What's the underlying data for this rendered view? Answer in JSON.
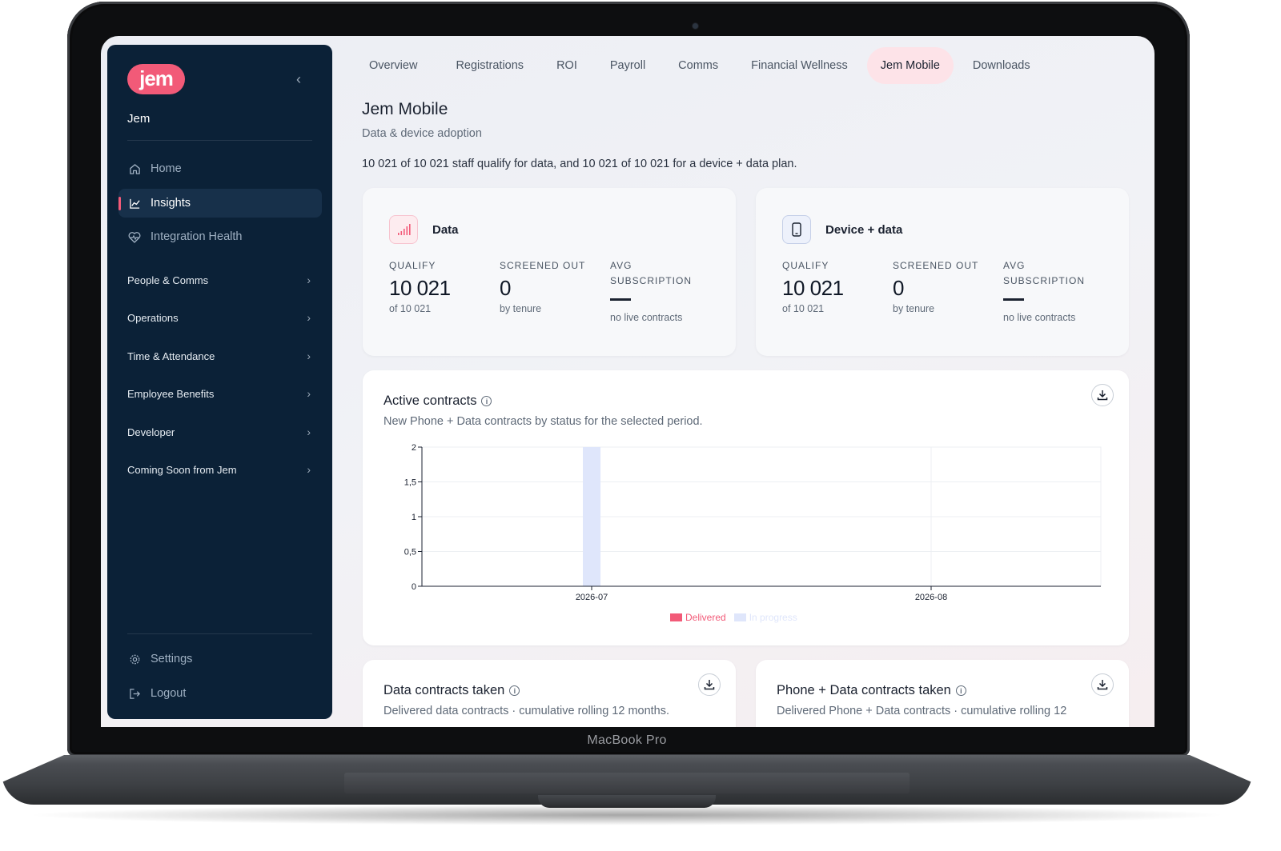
{
  "device": {
    "brand_label": "MacBook Pro"
  },
  "sidebar": {
    "logo_text": "jem",
    "collapse_icon": "chevron-left-icon",
    "org_name": "Jem",
    "primary_nav": [
      {
        "label": "Home",
        "icon": "home-icon",
        "active": false
      },
      {
        "label": "Insights",
        "icon": "line-chart-icon",
        "active": true
      },
      {
        "label": "Integration Health",
        "icon": "heart-pulse-icon",
        "active": false
      }
    ],
    "groups": [
      {
        "label": "People & Comms"
      },
      {
        "label": "Operations"
      },
      {
        "label": "Time & Attendance"
      },
      {
        "label": "Employee Benefits"
      },
      {
        "label": "Developer"
      },
      {
        "label": "Coming Soon from Jem"
      }
    ],
    "footer_nav": [
      {
        "label": "Settings",
        "icon": "gear-icon"
      },
      {
        "label": "Logout",
        "icon": "logout-icon"
      }
    ]
  },
  "tabs": [
    {
      "label": "Overview",
      "active": false
    },
    {
      "label": "Registrations",
      "active": false
    },
    {
      "label": "ROI",
      "active": false
    },
    {
      "label": "Payroll",
      "active": false
    },
    {
      "label": "Comms",
      "active": false
    },
    {
      "label": "Financial Wellness",
      "active": false
    },
    {
      "label": "Jem Mobile",
      "active": true
    },
    {
      "label": "Downloads",
      "active": false
    }
  ],
  "header": {
    "title": "Jem Mobile",
    "subtitle": "Data & device adoption",
    "qualify_line": "10 021 of 10 021 staff qualify for data, and 10 021 of 10 021 for a device + data plan."
  },
  "kpi_cards": [
    {
      "title": "Data",
      "icon": "signal-bars-icon",
      "qualify": {
        "label": "QUALIFY",
        "value": "10 021",
        "sub": "of 10 021"
      },
      "screened": {
        "label": "SCREENED OUT",
        "value": "0",
        "sub": "by tenure"
      },
      "avg": {
        "label": "AVG SUBSCRIPTION",
        "value": "—",
        "sub": "no live contracts"
      }
    },
    {
      "title": "Device + data",
      "icon": "phone-icon",
      "qualify": {
        "label": "QUALIFY",
        "value": "10 021",
        "sub": "of 10 021"
      },
      "screened": {
        "label": "SCREENED OUT",
        "value": "0",
        "sub": "by tenure"
      },
      "avg": {
        "label": "AVG SUBSCRIPTION",
        "value": "—",
        "sub": "no live contracts"
      }
    }
  ],
  "active_contracts": {
    "title": "Active contracts",
    "subtitle": "New Phone + Data contracts by status for the selected period.",
    "download_icon": "download-icon",
    "info_icon": "info-icon"
  },
  "chart_data": {
    "type": "bar",
    "categories": [
      "2026-07",
      "2026-08"
    ],
    "series": [
      {
        "name": "Delivered",
        "values": [
          0,
          0
        ],
        "color": "#f25a78"
      },
      {
        "name": "In progress",
        "values": [
          2,
          0
        ],
        "color": "#dfe6fb"
      }
    ],
    "y_ticks": [
      "0",
      "0,5",
      "1",
      "1,5",
      "2"
    ],
    "ylim": [
      0,
      2
    ],
    "stacked": true,
    "grid": true,
    "legend_position": "bottom-center"
  },
  "lower_cards": [
    {
      "title": "Data contracts taken",
      "subtitle": "Delivered data contracts · cumulative rolling 12 months."
    },
    {
      "title": "Phone + Data contracts taken",
      "subtitle": "Delivered Phone + Data contracts · cumulative rolling 12"
    }
  ],
  "colors": {
    "brand_pink": "#f25a78",
    "sidebar_bg": "#0b2137",
    "active_tab_bg": "#fde3e8",
    "in_progress_bar": "#dfe6fb"
  }
}
